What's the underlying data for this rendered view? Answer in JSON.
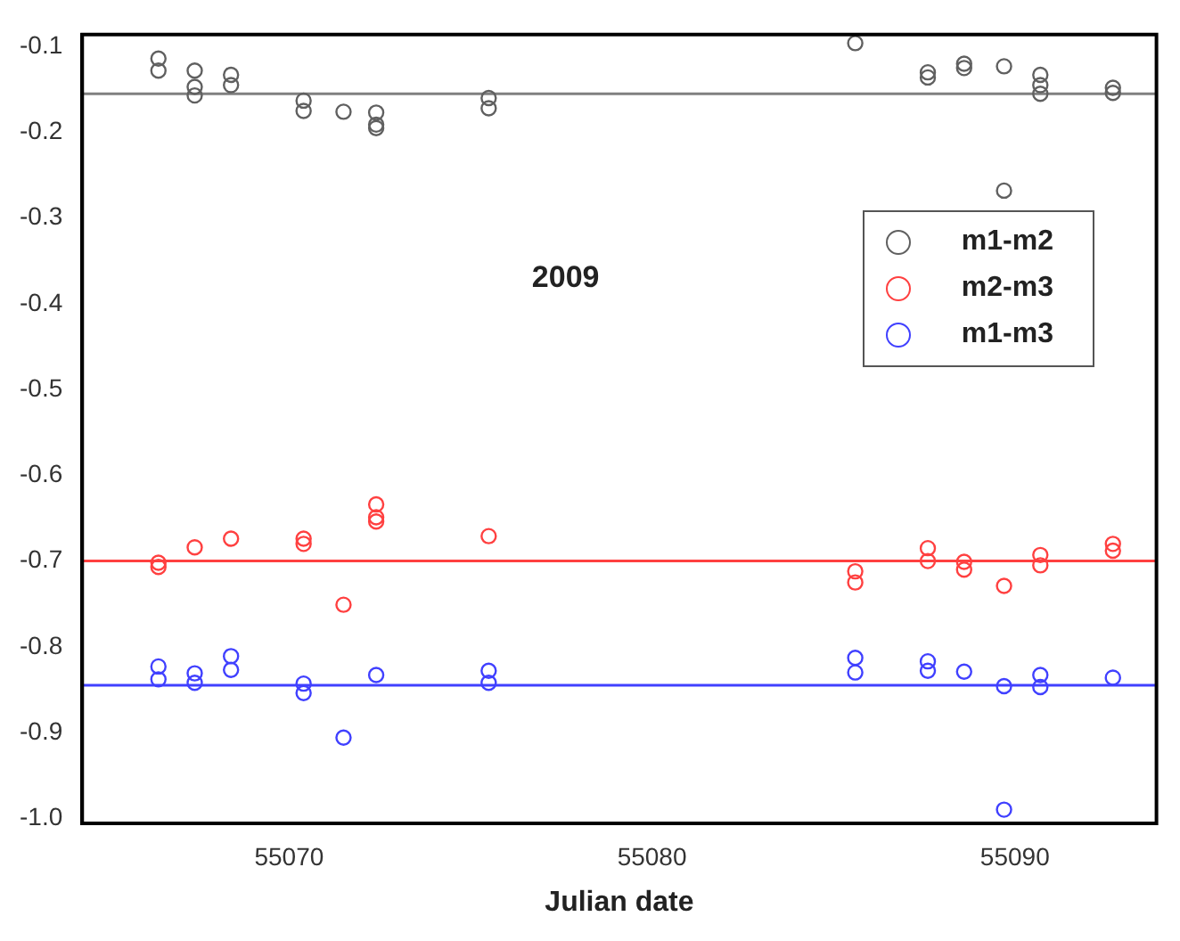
{
  "chart_data": {
    "type": "scatter",
    "xlabel": "Julian date",
    "annotations": [
      "2009"
    ],
    "xlim": [
      55064.3,
      55093.9
    ],
    "xticks": [
      55070,
      55080,
      55090
    ],
    "ylim": [
      -1.006,
      -0.086
    ],
    "yticks": [
      -0.1,
      -0.2,
      -0.3,
      -0.4,
      -0.5,
      -0.6,
      -0.7,
      -0.8,
      -0.9,
      {
        "value": -1.0,
        "label": "-1.0"
      }
    ],
    "grid": false,
    "legend": "top right",
    "marker": "circle",
    "ref_lines": [
      {
        "axis": "y",
        "value": -0.155,
        "color": "#808080"
      },
      {
        "axis": "y",
        "value": -0.7,
        "color": "#ff4040"
      },
      {
        "axis": "y",
        "value": -0.845,
        "color": "#4040ff"
      }
    ],
    "series": [
      {
        "name": "m1-m2",
        "color": "#606060",
        "x": [
          55066.4,
          55066.4,
          55067.4,
          55067.4,
          55067.4,
          55068.4,
          55068.4,
          55070.4,
          55070.4,
          55071.5,
          55072.4,
          55072.4,
          55072.4,
          55075.5,
          55075.5,
          55085.6,
          55087.6,
          55087.6,
          55088.6,
          55088.6,
          55089.7,
          55089.7,
          55090.7,
          55090.7,
          55090.7,
          55092.7,
          55092.7
        ],
        "values": [
          -0.114,
          -0.128,
          -0.128,
          -0.147,
          -0.157,
          -0.133,
          -0.145,
          -0.163,
          -0.175,
          -0.176,
          -0.177,
          -0.191,
          -0.195,
          -0.16,
          -0.172,
          -0.096,
          -0.13,
          -0.136,
          -0.12,
          -0.125,
          -0.123,
          -0.268,
          -0.133,
          -0.145,
          -0.155,
          -0.148,
          -0.154
        ]
      },
      {
        "name": "m2-m3",
        "color": "#ff4040",
        "x": [
          55066.4,
          55066.4,
          55067.4,
          55068.4,
          55070.4,
          55070.4,
          55071.5,
          55072.4,
          55072.4,
          55072.4,
          55075.5,
          55085.6,
          55085.6,
          55087.6,
          55087.6,
          55088.6,
          55088.6,
          55089.7,
          55090.7,
          55090.7,
          55092.7,
          55092.7
        ],
        "values": [
          -0.702,
          -0.707,
          -0.684,
          -0.674,
          -0.674,
          -0.68,
          -0.751,
          -0.634,
          -0.649,
          -0.654,
          -0.671,
          -0.712,
          -0.725,
          -0.685,
          -0.7,
          -0.701,
          -0.71,
          -0.729,
          -0.693,
          -0.705,
          -0.68,
          -0.688
        ]
      },
      {
        "name": "m1-m3",
        "color": "#4040ff",
        "x": [
          55066.4,
          55066.4,
          55067.4,
          55067.4,
          55068.4,
          55068.4,
          55070.4,
          55070.4,
          55071.5,
          55072.4,
          55075.5,
          55075.5,
          55085.6,
          55085.6,
          55087.6,
          55087.6,
          55088.6,
          55089.7,
          55089.7,
          55090.7,
          55090.7,
          55092.7
        ],
        "values": [
          -0.823,
          -0.838,
          -0.831,
          -0.842,
          -0.811,
          -0.827,
          -0.843,
          -0.854,
          -0.906,
          -0.833,
          -0.828,
          -0.842,
          -0.813,
          -0.83,
          -0.817,
          -0.828,
          -0.829,
          -0.846,
          -0.99,
          -0.833,
          -0.847,
          -0.836
        ]
      }
    ]
  }
}
